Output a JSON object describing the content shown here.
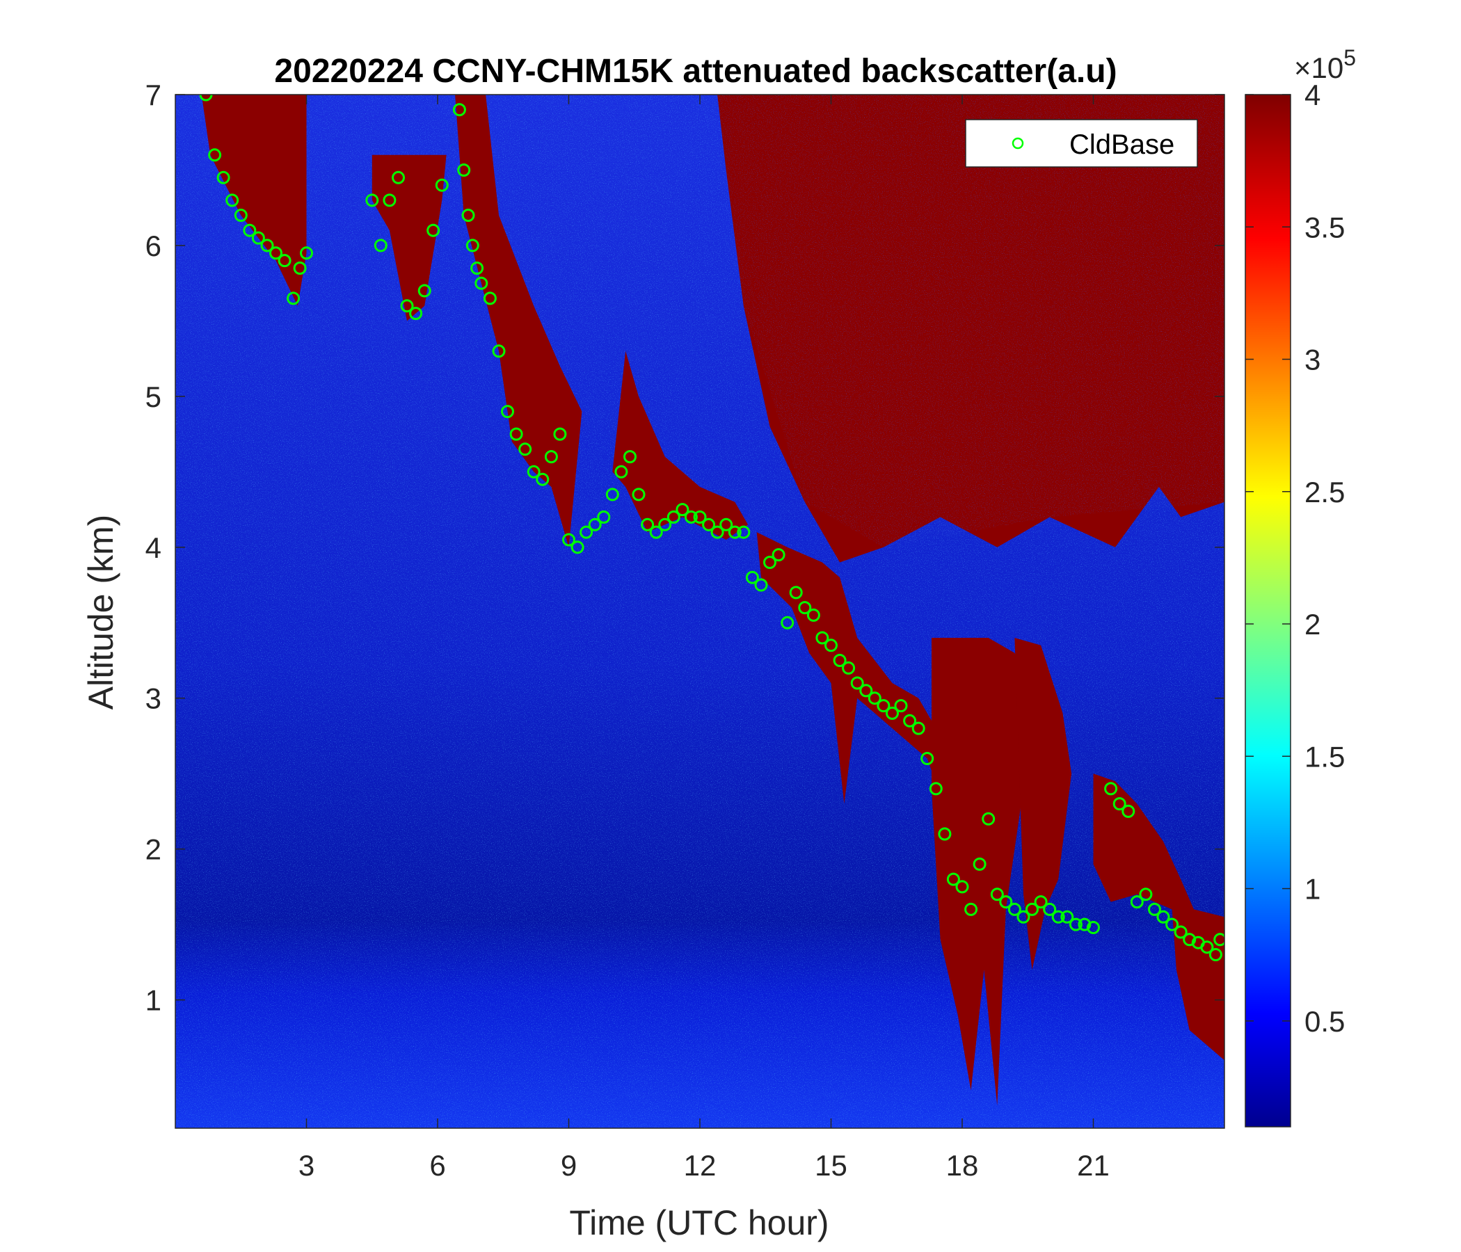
{
  "chart_data": {
    "type": "heatmap",
    "title": "20220224 CCNY-CHM15K attenuated backscatter(a.u)",
    "xlabel": "Time (UTC hour)",
    "ylabel": "Altitude (km)",
    "xlim": [
      0,
      24
    ],
    "ylim": [
      0.15,
      7
    ],
    "x_ticks": [
      3,
      6,
      9,
      12,
      15,
      18,
      21
    ],
    "y_ticks": [
      1,
      2,
      3,
      4,
      5,
      6,
      7
    ],
    "colorbar": {
      "colormap": "jet",
      "range": [
        0.1,
        4
      ],
      "ticks": [
        0.5,
        1,
        1.5,
        2,
        2.5,
        3,
        3.5,
        4
      ],
      "multiplier_label": "×10",
      "multiplier_exponent": "5"
    },
    "legend": {
      "location": "top-right",
      "entries": [
        "CldBase"
      ]
    },
    "series": [
      {
        "name": "CldBase",
        "marker": "circle",
        "color": "#00ff00",
        "x": [
          0.7,
          0.9,
          1.1,
          1.3,
          1.5,
          1.7,
          1.9,
          2.1,
          2.3,
          2.5,
          2.7,
          2.85,
          3.0,
          4.5,
          4.7,
          4.9,
          5.1,
          5.3,
          5.5,
          5.7,
          5.9,
          6.1,
          6.5,
          6.6,
          6.7,
          6.8,
          6.9,
          7.0,
          7.2,
          7.4,
          7.6,
          7.8,
          8.0,
          8.2,
          8.4,
          8.6,
          8.8,
          9.0,
          9.2,
          9.4,
          9.6,
          9.8,
          10.0,
          10.2,
          10.4,
          10.6,
          10.8,
          11.0,
          11.2,
          11.4,
          11.6,
          11.8,
          12.0,
          12.2,
          12.4,
          12.6,
          12.8,
          13.0,
          13.2,
          13.4,
          13.6,
          13.8,
          14.0,
          14.2,
          14.4,
          14.6,
          14.8,
          15.0,
          15.2,
          15.4,
          15.6,
          15.8,
          16.0,
          16.2,
          16.4,
          16.6,
          16.8,
          17.0,
          17.2,
          17.4,
          17.6,
          17.8,
          18.0,
          18.2,
          18.4,
          18.6,
          18.8,
          19.0,
          19.2,
          19.4,
          19.6,
          19.8,
          20.0,
          20.2,
          20.4,
          20.6,
          20.8,
          21.0,
          21.4,
          21.6,
          21.8,
          22.0,
          22.2,
          22.4,
          22.6,
          22.8,
          23.0,
          23.2,
          23.4,
          23.6,
          23.8,
          23.9
        ],
        "y": [
          7.0,
          6.6,
          6.45,
          6.3,
          6.2,
          6.1,
          6.05,
          6.0,
          5.95,
          5.9,
          5.65,
          5.85,
          5.95,
          6.3,
          6.0,
          6.3,
          6.45,
          5.6,
          5.55,
          5.7,
          6.1,
          6.4,
          6.9,
          6.5,
          6.2,
          6.0,
          5.85,
          5.75,
          5.65,
          5.3,
          4.9,
          4.75,
          4.65,
          4.5,
          4.45,
          4.6,
          4.75,
          4.05,
          4.0,
          4.1,
          4.15,
          4.2,
          4.35,
          4.5,
          4.6,
          4.35,
          4.15,
          4.1,
          4.15,
          4.2,
          4.25,
          4.2,
          4.2,
          4.15,
          4.1,
          4.15,
          4.1,
          4.1,
          3.8,
          3.75,
          3.9,
          3.95,
          3.5,
          3.7,
          3.6,
          3.55,
          3.4,
          3.35,
          3.25,
          3.2,
          3.1,
          3.05,
          3.0,
          2.95,
          2.9,
          2.95,
          2.85,
          2.8,
          2.6,
          2.4,
          2.1,
          1.8,
          1.75,
          1.6,
          1.9,
          2.2,
          1.7,
          1.65,
          1.6,
          1.55,
          1.6,
          1.65,
          1.6,
          1.55,
          1.55,
          1.5,
          1.5,
          1.48,
          2.4,
          2.3,
          2.25,
          1.65,
          1.7,
          1.6,
          1.55,
          1.5,
          1.45,
          1.4,
          1.38,
          1.35,
          1.3,
          1.4
        ]
      }
    ]
  }
}
